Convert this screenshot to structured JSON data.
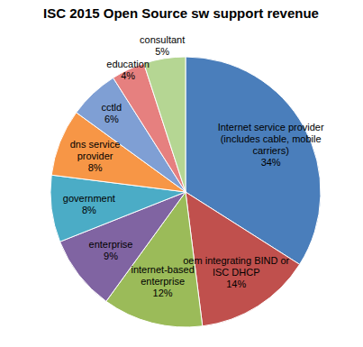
{
  "chart_data": {
    "type": "pie",
    "title": "ISC 2015 Open Source sw support revenue",
    "categories": [
      "Internet service provider (includes cable, mobile carriers)",
      "oem integrating BIND or ISC DHCP",
      "internet-based enterprise",
      "enterprise",
      "government",
      "dns service provider",
      "cctld",
      "education",
      "consultant"
    ],
    "values": [
      34,
      14,
      12,
      9,
      8,
      8,
      6,
      4,
      5
    ],
    "value_labels": [
      "34%",
      "14%",
      "12%",
      "9%",
      "8%",
      "8%",
      "6%",
      "4%",
      "5%"
    ],
    "colors": [
      "#4A7EBB",
      "#C0504D",
      "#9BBB59",
      "#8064A2",
      "#4BACC6",
      "#F79646",
      "#7F9FD4",
      "#E6807F",
      "#B5D693"
    ],
    "data_labels": true
  }
}
